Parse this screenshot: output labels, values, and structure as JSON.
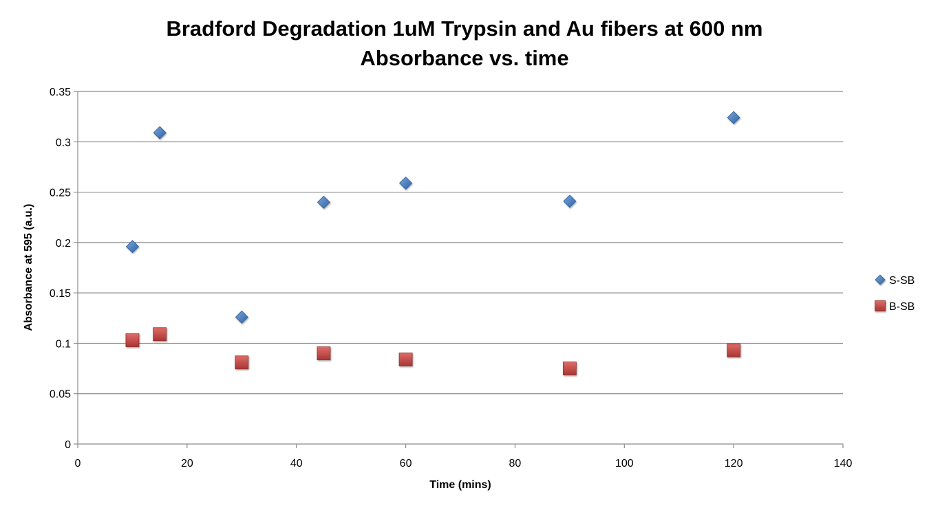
{
  "chart_data": {
    "type": "scatter",
    "title_lines": [
      "Bradford Degradation 1uM Trypsin and Au fibers at 600 nm",
      "Absorbance vs. time"
    ],
    "xlabel": "Time (mins)",
    "ylabel": "Absorbance at 595 (a.u.)",
    "xlim": [
      0,
      140
    ],
    "ylim": [
      0,
      0.35
    ],
    "x_ticks": [
      0,
      20,
      40,
      60,
      80,
      100,
      120,
      140
    ],
    "y_ticks": [
      0,
      0.05,
      0.1,
      0.15,
      0.2,
      0.25,
      0.3,
      0.35
    ],
    "grid": "horizontal",
    "legend_position": "right",
    "series": [
      {
        "name": "S-SB",
        "marker": "diamond",
        "color": "#4a7ebb",
        "points": [
          [
            10,
            0.196
          ],
          [
            15,
            0.309
          ],
          [
            30,
            0.126
          ],
          [
            45,
            0.24
          ],
          [
            60,
            0.259
          ],
          [
            90,
            0.241
          ],
          [
            120,
            0.324
          ]
        ]
      },
      {
        "name": "B-SB",
        "marker": "square",
        "color": "#c0504d",
        "points": [
          [
            10,
            0.103
          ],
          [
            15,
            0.109
          ],
          [
            30,
            0.081
          ],
          [
            45,
            0.09
          ],
          [
            60,
            0.084
          ],
          [
            90,
            0.075
          ],
          [
            120,
            0.093
          ]
        ]
      }
    ]
  }
}
